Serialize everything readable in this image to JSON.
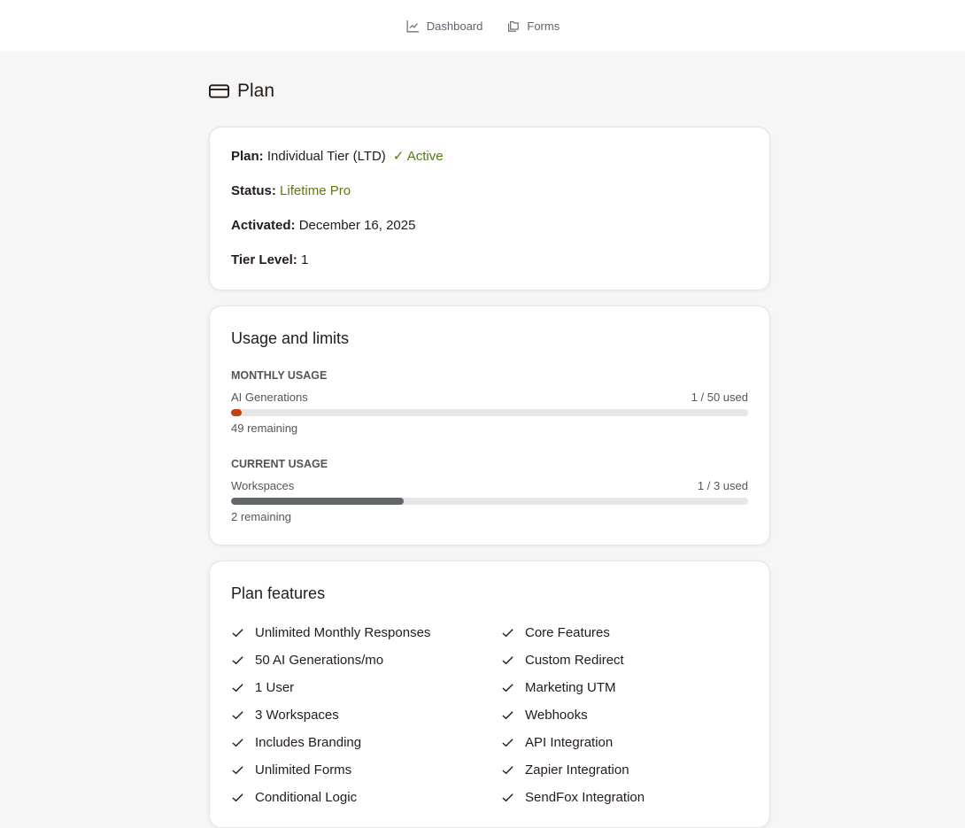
{
  "nav": [
    {
      "label": "Dashboard",
      "icon": "chart-line-icon"
    },
    {
      "label": "Forms",
      "icon": "folders-icon"
    }
  ],
  "page": {
    "title": "Plan",
    "icon": "credit-card-icon"
  },
  "plan": {
    "plan_label": "Plan:",
    "plan_value": "Individual Tier (LTD)",
    "active": "✓ Active",
    "status_label": "Status:",
    "status_value": "Lifetime Pro",
    "activated_label": "Activated:",
    "activated_value": "December 16, 2025",
    "tier_label": "Tier Level:",
    "tier_value": "1"
  },
  "usage": {
    "title": "Usage and limits",
    "monthly": {
      "heading": "MONTHLY USAGE",
      "name": "AI Generations",
      "used": "1 / 50 used",
      "remaining": "49 remaining",
      "fraction": 0.02,
      "color": "#c2410c"
    },
    "current": {
      "heading": "CURRENT USAGE",
      "name": "Workspaces",
      "used": "1 / 3 used",
      "remaining": "2 remaining",
      "fraction": 0.3333,
      "color": "#62666c"
    }
  },
  "features": {
    "title": "Plan features",
    "items": [
      "Unlimited Monthly Responses",
      "Core Features",
      "50 AI Generations/mo",
      "Custom Redirect",
      "1 User",
      "Marketing UTM",
      "3 Workspaces",
      "Webhooks",
      "Includes Branding",
      "API Integration",
      "Unlimited Forms",
      "Zapier Integration",
      "Conditional Logic",
      "SendFox Integration"
    ]
  }
}
